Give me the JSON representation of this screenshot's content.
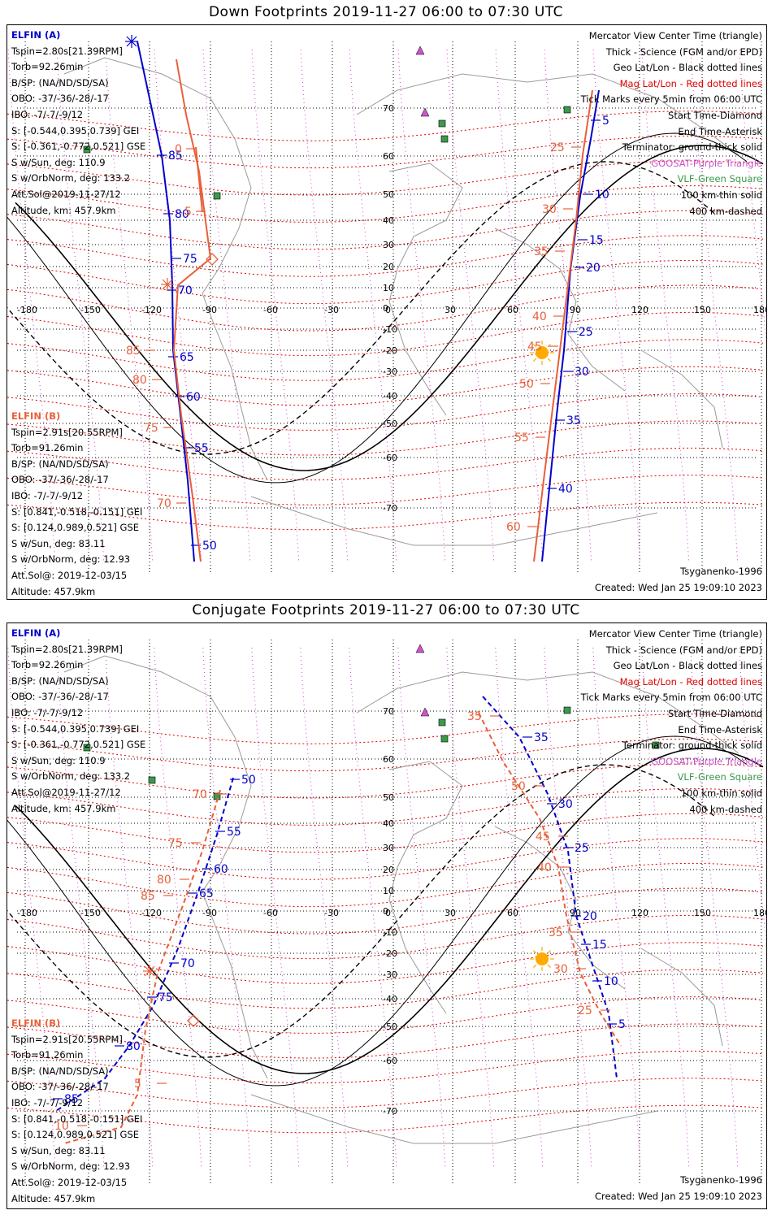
{
  "colors": {
    "probe_a": "#0000cc",
    "probe_b": "#e8603a",
    "mag_grid": "#e00000",
    "geo_grid": "#000000",
    "lon_merid": "#cc44cc",
    "vlf": "#3a9a4a",
    "sat": "#cc55cc",
    "sun": "#ffaa00"
  },
  "panels": [
    {
      "title": "Down Footprints 2019-11-27 06:00 to 07:30 UTC",
      "probe_a": {
        "header": "ELFIN (A)",
        "lines": [
          "Tspin=2.80s[21.39RPM]",
          "Torb=92.26min",
          "B/SP: (NA/ND/SD/SA)",
          "OBO: -37/-36/-28/-17",
          "IBO: -7/-7/-9/12",
          "S: [-0.544,0.395,0.739] GEI",
          "S: [-0.361,-0.772,0.521] GSE",
          "S w/Sun, deg: 110.9",
          "S w/OrbNorm, deg: 133.2",
          "Att.Sol@2019-11-27/12",
          "Altitude, km: 457.9km"
        ]
      },
      "probe_b": {
        "header": "ELFIN (B)",
        "lines": [
          "Tspin=2.91s[20.55RPM]",
          "Torb=91.26min",
          "B/SP: (NA/ND/SD/SA)",
          "OBO: -37/-36/-28/-17",
          "IBO: -7/-7/-9/12",
          "S: [0.841,-0.518,-0.151] GEI",
          "S: [0.124,0.989,0.521] GSE",
          "S w/Sun, deg: 83.11",
          "S w/OrbNorm, deg: 12.93",
          "Att.Sol@: 2019-12-03/15",
          "Altitude: 457.9km"
        ]
      },
      "legend": [
        {
          "text": "Mercator View Center Time (triangle)",
          "color": "#000000"
        },
        {
          "text": "Thick - Science (FGM and/or EPD)",
          "color": "#000000"
        },
        {
          "text": "Geo Lat/Lon - Black dotted lines",
          "color": "#000000"
        },
        {
          "text": "Mag Lat/Lon - Red dotted lines",
          "color": "#e00000"
        },
        {
          "text": "Tick Marks every 5min from 06:00 UTC",
          "color": "#000000"
        },
        {
          "text": "Start Time-Diamond",
          "color": "#000000"
        },
        {
          "text": "End Time-Asterisk",
          "color": "#000000"
        },
        {
          "text": "Terminator: ground-thick solid",
          "color": "#000000"
        },
        {
          "text": "GOOSAT-Purple Triangle",
          "color": "#cc55cc"
        },
        {
          "text": "VLF-Green Square",
          "color": "#3a9a4a"
        },
        {
          "text": "100 km-thin solid",
          "color": "#000000"
        },
        {
          "text": "400 km-dashed",
          "color": "#000000"
        }
      ],
      "model": "Tsyganenko-1996",
      "created": "Created: Wed Jan 25 19:09:10 2023",
      "lon_ticks": [
        "-180",
        "-150",
        "-120",
        "-90",
        "-60",
        "-30",
        "0",
        "30",
        "60",
        "90",
        "120",
        "150",
        "180"
      ],
      "lat_ticks": [
        "70",
        "60",
        "50",
        "40",
        "30",
        "20",
        "10",
        "0",
        "-10",
        "-20",
        "-30",
        "-40",
        "-50",
        "-60",
        "-70"
      ],
      "trace_labels_a": [
        "85",
        "80",
        "75",
        "70",
        "65",
        "60",
        "55",
        "50",
        "5",
        "10",
        "15",
        "20",
        "25",
        "30",
        "35",
        "40"
      ],
      "trace_labels_b": [
        "0",
        "5",
        "10",
        "85",
        "80",
        "75",
        "70",
        "25",
        "30",
        "35",
        "40",
        "45",
        "50",
        "55",
        "60"
      ]
    },
    {
      "title": "Conjugate Footprints 2019-11-27 06:00 to 07:30 UTC",
      "probe_a": {
        "header": "ELFIN (A)",
        "lines": [
          "Tspin=2.80s[21.39RPM]",
          "Torb=92.26min",
          "B/SP: (NA/ND/SD/SA)",
          "OBO: -37/-36/-28/-17",
          "IBO: -7/-7/-9/12",
          "S: [-0.544,0.395,0.739] GEI",
          "S: [-0.361,-0.772,0.521] GSE",
          "S w/Sun, deg: 110.9",
          "S w/OrbNorm, deg: 133.2",
          "Att.Sol@2019-11-27/12",
          "Altitude, km: 457.9km"
        ]
      },
      "probe_b": {
        "header": "ELFIN (B)",
        "lines": [
          "Tspin=2.91s[20.55RPM]",
          "Torb=91.26min",
          "B/SP: (NA/ND/SD/SA)",
          "OBO: -37/-36/-28/-17",
          "IBO: -7/-7/-9/12",
          "S: [0.841,-0.518,-0.151] GEI",
          "S: [0.124,0.989,0.521] GSE",
          "S w/Sun, deg: 83.11",
          "S w/OrbNorm, deg: 12.93",
          "Att.Sol@: 2019-12-03/15",
          "Altitude: 457.9km"
        ]
      },
      "legend": [
        {
          "text": "Mercator View Center Time (triangle)",
          "color": "#000000"
        },
        {
          "text": "Thick - Science (FGM and/or EPD)",
          "color": "#000000"
        },
        {
          "text": "Geo Lat/Lon - Black dotted lines",
          "color": "#000000"
        },
        {
          "text": "Mag Lat/Lon - Red dotted lines",
          "color": "#e00000"
        },
        {
          "text": "Tick Marks every 5min from 06:00 UTC",
          "color": "#000000"
        },
        {
          "text": "Start Time-Diamond",
          "color": "#000000"
        },
        {
          "text": "End Time-Asterisk",
          "color": "#000000"
        },
        {
          "text": "Terminator: ground-thick solid",
          "color": "#000000"
        },
        {
          "text": "GOOSAT-Purple Triangle",
          "color": "#cc55cc"
        },
        {
          "text": "VLF-Green Square",
          "color": "#3a9a4a"
        },
        {
          "text": "100 km-thin solid",
          "color": "#000000"
        },
        {
          "text": "400 km-dashed",
          "color": "#000000"
        }
      ],
      "model": "Tsyganenko-1996",
      "created": "Created: Wed Jan 25 19:09:10 2023",
      "lon_ticks": [
        "-180",
        "-150",
        "-120",
        "-90",
        "-60",
        "-30",
        "0",
        "30",
        "60",
        "90",
        "120",
        "150",
        "180"
      ],
      "lat_ticks": [
        "70",
        "60",
        "50",
        "40",
        "30",
        "20",
        "10",
        "0",
        "-10",
        "-20",
        "-30",
        "-40",
        "-50",
        "-60",
        "-70"
      ],
      "trace_labels_a": [
        "50",
        "55",
        "60",
        "65",
        "70",
        "75",
        "80",
        "85",
        "35",
        "30",
        "25",
        "20",
        "15",
        "10",
        "5"
      ],
      "trace_labels_b": [
        "70",
        "75",
        "80",
        "85",
        "5",
        "10",
        "35",
        "50",
        "45",
        "40",
        "35",
        "30",
        "25"
      ]
    }
  ]
}
